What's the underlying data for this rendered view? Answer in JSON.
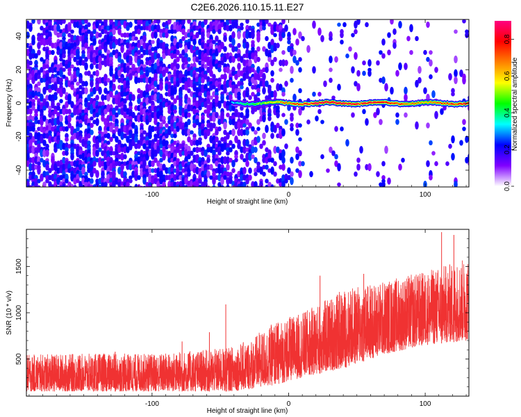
{
  "chart_data": [
    {
      "type": "heatmap",
      "title": "C2E6.2026.110.15.11.E27",
      "xlabel": "Height of straight line (km)",
      "ylabel": "Frequency (Hz)",
      "xlim": [
        -192,
        132
      ],
      "ylim": [
        -50,
        50
      ],
      "xticks": [
        -100,
        0,
        100
      ],
      "yticks": [
        -40,
        -20,
        0,
        20,
        40
      ],
      "colorbar": {
        "label": "Normalized spectral amplitude",
        "range": [
          0,
          0.9
        ],
        "ticks": [
          "0.0",
          "0.2",
          "0.4",
          "0.6",
          "0.8"
        ],
        "colors": [
          "#ffffff",
          "#8000ff",
          "#0000ff",
          "#00ffff",
          "#00ff00",
          "#ffff00",
          "#ff8000",
          "#ff0000",
          "#ff0080"
        ]
      },
      "noise": {
        "dense_until_x": -50,
        "fade_until_x": 10,
        "sparse_until_x": 132,
        "cell_amplitude": 0.2
      },
      "signal_line": {
        "start_x": -42,
        "end_x": 132,
        "frequency_hz": 0,
        "amplitude_profile": [
          {
            "x": -42,
            "amp": 0.3
          },
          {
            "x": -20,
            "amp": 0.5
          },
          {
            "x": 0,
            "amp": 0.7
          },
          {
            "x": 20,
            "amp": 0.85
          },
          {
            "x": 60,
            "amp": 0.8
          },
          {
            "x": 95,
            "amp": 0.65
          },
          {
            "x": 132,
            "amp": 0.8
          }
        ]
      }
    },
    {
      "type": "line",
      "xlabel": "Height of straight line (km)",
      "ylabel": "SNR (10 * v/v)",
      "xlim": [
        -192,
        132
      ],
      "ylim": [
        100,
        1900
      ],
      "xticks": [
        -100,
        0,
        100
      ],
      "yticks": [
        500,
        1000,
        1500
      ],
      "color": "#f03232",
      "series": [
        {
          "name": "SNR",
          "envelope": [
            {
              "x": -192,
              "low": 150,
              "high": 550
            },
            {
              "x": -140,
              "low": 150,
              "high": 560
            },
            {
              "x": -100,
              "low": 150,
              "high": 560
            },
            {
              "x": -60,
              "low": 150,
              "high": 600
            },
            {
              "x": -45,
              "low": 150,
              "high": 620
            },
            {
              "x": -30,
              "low": 170,
              "high": 700
            },
            {
              "x": -10,
              "low": 220,
              "high": 900
            },
            {
              "x": 10,
              "low": 300,
              "high": 1000
            },
            {
              "x": 40,
              "low": 400,
              "high": 1250
            },
            {
              "x": 70,
              "low": 550,
              "high": 1350
            },
            {
              "x": 100,
              "low": 650,
              "high": 1450
            },
            {
              "x": 132,
              "low": 700,
              "high": 1600
            }
          ],
          "spikes": [
            {
              "x": -127,
              "value": 580
            },
            {
              "x": -78,
              "value": 690
            },
            {
              "x": -58,
              "value": 790
            },
            {
              "x": -46,
              "value": 1090
            },
            {
              "x": 23,
              "value": 1400
            },
            {
              "x": 55,
              "value": 1420
            },
            {
              "x": 112,
              "value": 1870
            },
            {
              "x": 121,
              "value": 1840
            }
          ]
        }
      ]
    }
  ]
}
